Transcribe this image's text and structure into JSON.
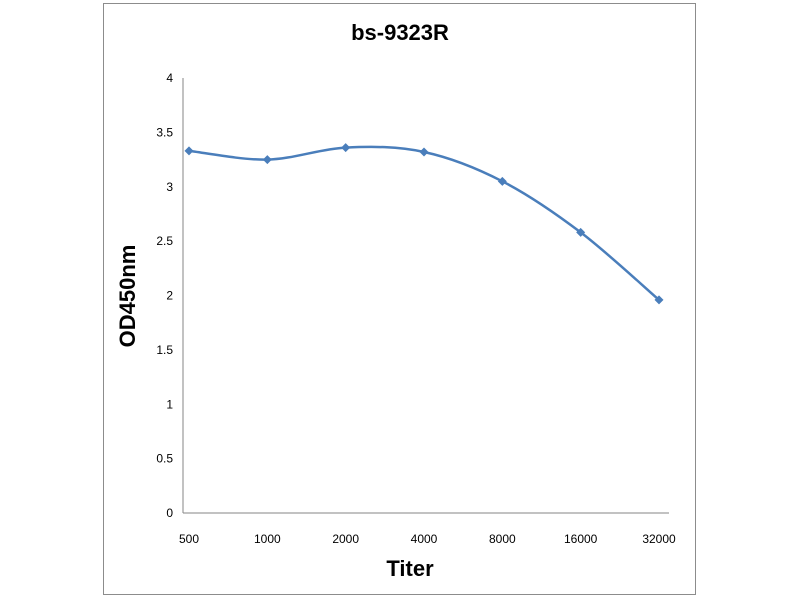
{
  "chart_data": {
    "type": "line",
    "title": "bs-9323R",
    "xlabel": "Titer",
    "ylabel": "OD450nm",
    "categories": [
      "500",
      "1000",
      "2000",
      "4000",
      "8000",
      "16000",
      "32000"
    ],
    "series": [
      {
        "values": [
          3.33,
          3.25,
          3.36,
          3.32,
          3.05,
          2.58,
          1.96
        ]
      }
    ],
    "ylim": [
      0,
      4
    ],
    "yticks": [
      "0",
      "0.5",
      "1",
      "1.5",
      "2",
      "2.5",
      "3",
      "3.5",
      "4"
    ],
    "grid": false,
    "legend": "none",
    "colors": {
      "series": "#4a7ebb",
      "axis": "#868686",
      "frame": "#8c8c8c"
    },
    "marker": "diamond",
    "smooth": true
  }
}
